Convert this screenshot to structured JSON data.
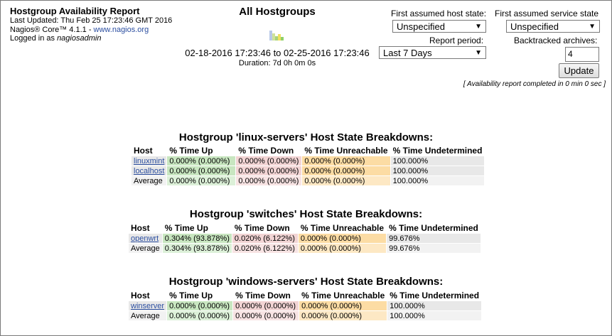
{
  "info": {
    "title": "Hostgroup Availability Report",
    "last_updated": "Last Updated: Thu Feb 25 17:23:46 GMT 2016",
    "product_prefix": "Nagios® Core™ 4.1.1 - ",
    "product_link": "www.nagios.org",
    "logged_in_prefix": "Logged in as ",
    "logged_in_user": "nagiosadmin"
  },
  "report": {
    "heading": "All Hostgroups",
    "range": "02-18-2016 17:23:46 to 02-25-2016 17:23:46",
    "duration": "Duration: 7d 0h 0m 0s",
    "completed": "[ Availability report completed in 0 min 0 sec ]"
  },
  "controls": {
    "host_state_label": "First assumed host state:",
    "host_state_value": "Unspecified",
    "service_state_label": "First assumed service state",
    "service_state_value": "Unspecified",
    "period_label": "Report period:",
    "period_value": "Last 7 Days",
    "archives_label": "Backtracked archives:",
    "archives_value": "4",
    "update_label": "Update"
  },
  "columns": [
    "Host",
    "% Time Up",
    "% Time Down",
    "% Time Unreachable",
    "% Time Undetermined"
  ],
  "groups": [
    {
      "title": "Hostgroup 'linux-servers' Host State Breakdowns:",
      "rows": [
        [
          "linuxmint",
          "0.000% (0.000%)",
          "0.000% (0.000%)",
          "0.000% (0.000%)",
          "100.000%"
        ],
        [
          "localhost",
          "0.000% (0.000%)",
          "0.000% (0.000%)",
          "0.000% (0.000%)",
          "100.000%"
        ],
        [
          "Average",
          "0.000% (0.000%)",
          "0.000% (0.000%)",
          "0.000% (0.000%)",
          "100.000%"
        ]
      ]
    },
    {
      "title": "Hostgroup 'switches' Host State Breakdowns:",
      "rows": [
        [
          "openwrt",
          "0.304% (93.878%)",
          "0.020% (6.122%)",
          "0.000% (0.000%)",
          "99.676%"
        ],
        [
          "Average",
          "0.304% (93.878%)",
          "0.020% (6.122%)",
          "0.000% (0.000%)",
          "99.676%"
        ]
      ]
    },
    {
      "title": "Hostgroup 'windows-servers' Host State Breakdowns:",
      "rows": [
        [
          "winserver",
          "0.000% (0.000%)",
          "0.000% (0.000%)",
          "0.000% (0.000%)",
          "100.000%"
        ],
        [
          "Average",
          "0.000% (0.000%)",
          "0.000% (0.000%)",
          "0.000% (0.000%)",
          "100.000%"
        ]
      ]
    }
  ],
  "colors": {
    "up": "#c8e6c0",
    "down": "#f2d4d4",
    "unreachable": "#fcdca4",
    "undetermined": "#e8e8e8",
    "link": "#2b4ea0"
  },
  "icons": {
    "trends": "trends-icon"
  }
}
